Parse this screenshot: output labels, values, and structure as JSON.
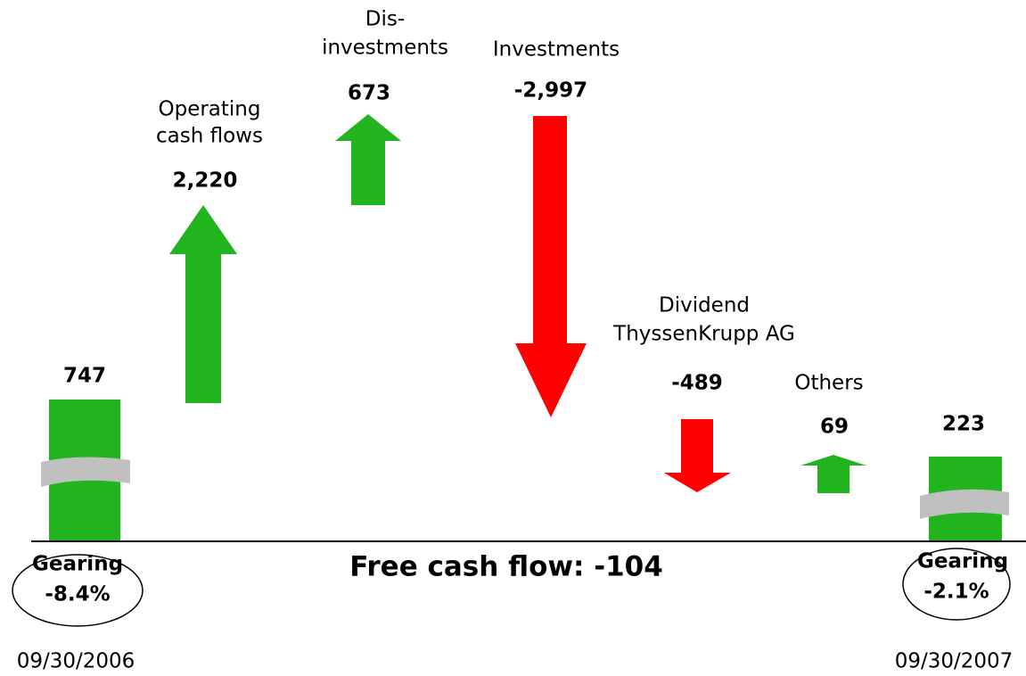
{
  "start": {
    "value": "747",
    "gearing_label": "Gearing",
    "gearing": "-8.4%",
    "date": "09/30/2006"
  },
  "steps": [
    {
      "label": [
        "Operating",
        "cash flows"
      ],
      "value": "2,220"
    },
    {
      "label": [
        "Dis-",
        "investments"
      ],
      "value": "673"
    },
    {
      "label": [
        "Investments"
      ],
      "value": "-2,997"
    },
    {
      "label": [
        "Dividend",
        "ThyssenKrupp AG"
      ],
      "value": "-489"
    },
    {
      "label": [
        "Others"
      ],
      "value": "69"
    }
  ],
  "end": {
    "value": "223",
    "gearing_label": "Gearing",
    "gearing": "-2.1%",
    "date": "09/30/2007"
  },
  "footer": "Free cash flow: -104"
}
